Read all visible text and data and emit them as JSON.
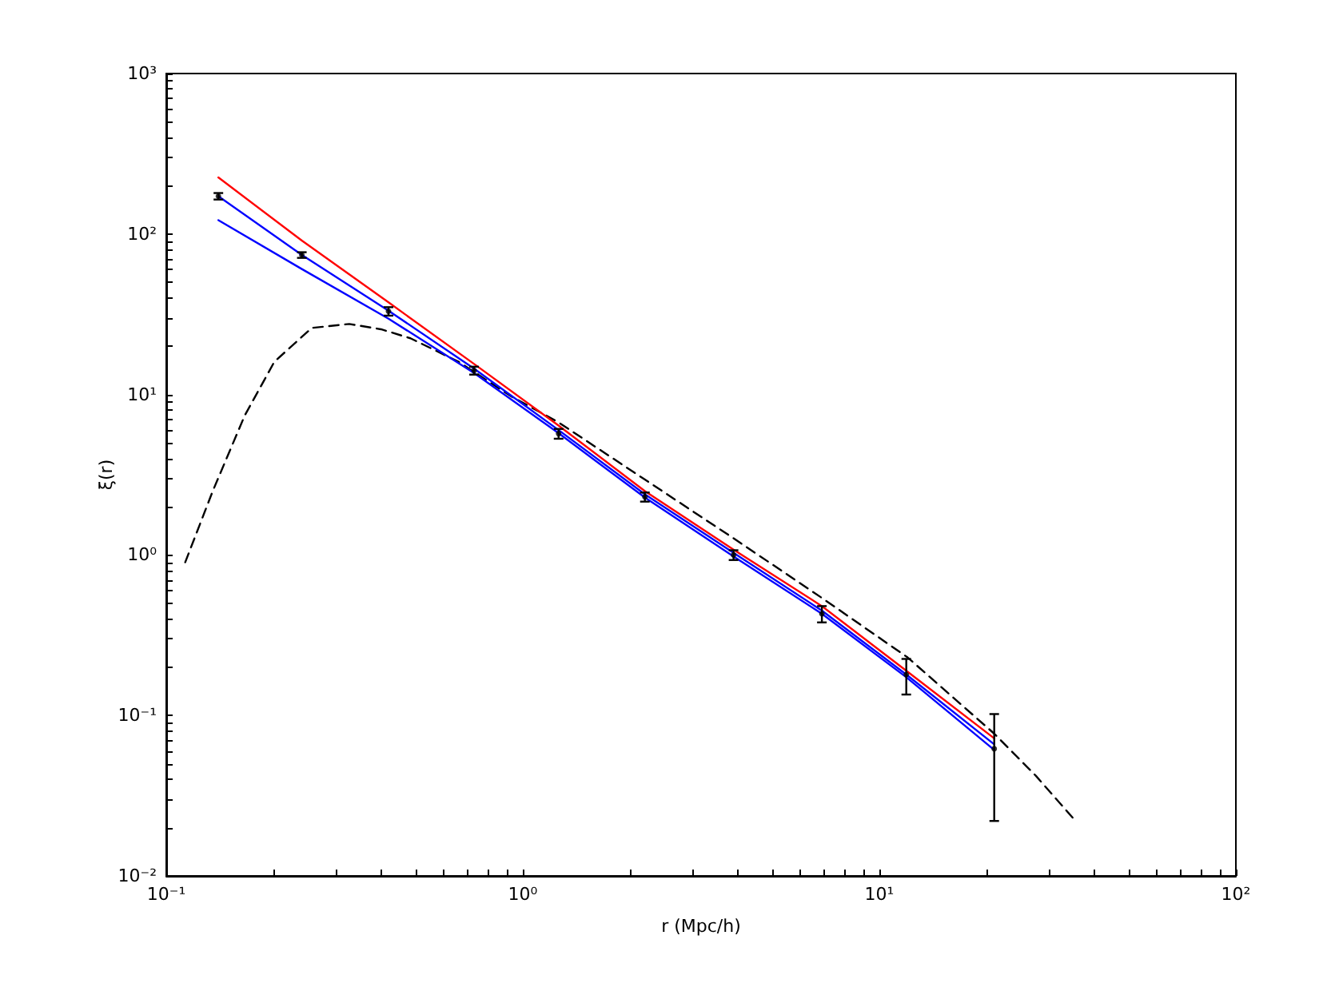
{
  "chart_data": {
    "type": "line",
    "xlabel": "r (Mpc/h)",
    "ylabel": "ξ(r)",
    "log": "xy",
    "grid": false,
    "marker": "none",
    "xlim": [
      0.1,
      100
    ],
    "ylim": [
      0.01,
      1000
    ],
    "xticks": [
      {
        "value": 0.1,
        "label": "10⁻¹"
      },
      {
        "value": 0.2,
        "label": null
      },
      {
        "value": 0.3,
        "label": null
      },
      {
        "value": 0.4,
        "label": null
      },
      {
        "value": 0.5,
        "label": null
      },
      {
        "value": 0.6,
        "label": null
      },
      {
        "value": 0.7,
        "label": null
      },
      {
        "value": 0.8,
        "label": null
      },
      {
        "value": 0.9,
        "label": null
      },
      {
        "value": 1,
        "label": "10⁰"
      },
      {
        "value": 2,
        "label": null
      },
      {
        "value": 3,
        "label": null
      },
      {
        "value": 4,
        "label": null
      },
      {
        "value": 5,
        "label": null
      },
      {
        "value": 6,
        "label": null
      },
      {
        "value": 7,
        "label": null
      },
      {
        "value": 8,
        "label": null
      },
      {
        "value": 9,
        "label": null
      },
      {
        "value": 10,
        "label": "10¹"
      },
      {
        "value": 20,
        "label": null
      },
      {
        "value": 30,
        "label": null
      },
      {
        "value": 40,
        "label": null
      },
      {
        "value": 50,
        "label": null
      },
      {
        "value": 60,
        "label": null
      },
      {
        "value": 70,
        "label": null
      },
      {
        "value": 80,
        "label": null
      },
      {
        "value": 90,
        "label": null
      },
      {
        "value": 100,
        "label": "10²"
      }
    ],
    "yticks": [
      {
        "value": 0.01,
        "label": "10⁻²"
      },
      {
        "value": 0.02,
        "label": null
      },
      {
        "value": 0.03,
        "label": null
      },
      {
        "value": 0.04,
        "label": null
      },
      {
        "value": 0.05,
        "label": null
      },
      {
        "value": 0.06,
        "label": null
      },
      {
        "value": 0.07,
        "label": null
      },
      {
        "value": 0.08,
        "label": null
      },
      {
        "value": 0.09,
        "label": null
      },
      {
        "value": 0.1,
        "label": "10⁻¹"
      },
      {
        "value": 0.2,
        "label": null
      },
      {
        "value": 0.3,
        "label": null
      },
      {
        "value": 0.4,
        "label": null
      },
      {
        "value": 0.5,
        "label": null
      },
      {
        "value": 0.6,
        "label": null
      },
      {
        "value": 0.7,
        "label": null
      },
      {
        "value": 0.8,
        "label": null
      },
      {
        "value": 0.9,
        "label": null
      },
      {
        "value": 1,
        "label": "10⁰"
      },
      {
        "value": 2,
        "label": null
      },
      {
        "value": 3,
        "label": null
      },
      {
        "value": 4,
        "label": null
      },
      {
        "value": 5,
        "label": null
      },
      {
        "value": 6,
        "label": null
      },
      {
        "value": 7,
        "label": null
      },
      {
        "value": 8,
        "label": null
      },
      {
        "value": 9,
        "label": null
      },
      {
        "value": 10,
        "label": "10¹"
      },
      {
        "value": 20,
        "label": null
      },
      {
        "value": 30,
        "label": null
      },
      {
        "value": 40,
        "label": null
      },
      {
        "value": 50,
        "label": null
      },
      {
        "value": 60,
        "label": null
      },
      {
        "value": 70,
        "label": null
      },
      {
        "value": 80,
        "label": null
      },
      {
        "value": 90,
        "label": null
      },
      {
        "value": 100,
        "label": "10²"
      },
      {
        "value": 200,
        "label": null
      },
      {
        "value": 300,
        "label": null
      },
      {
        "value": 400,
        "label": null
      },
      {
        "value": 500,
        "label": null
      },
      {
        "value": 600,
        "label": null
      },
      {
        "value": 700,
        "label": null
      },
      {
        "value": 800,
        "label": null
      },
      {
        "value": 900,
        "label": null
      },
      {
        "value": 1000,
        "label": "10³"
      }
    ],
    "series": [
      {
        "color": "#000000",
        "line_style": "dashed",
        "x": [
          0.113,
          0.135,
          0.166,
          0.201,
          0.256,
          0.326,
          0.4,
          0.484,
          0.66,
          0.93,
          1.26,
          2.2,
          3.9,
          6.9,
          12,
          21,
          27.5,
          35.5
        ],
        "values": [
          0.9,
          2.5,
          7.4,
          16,
          26,
          27.5,
          25.5,
          22.4,
          16,
          9.7,
          6.7,
          2.95,
          1.27,
          0.54,
          0.23,
          0.077,
          0.042,
          0.022
        ]
      },
      {
        "color": "#ff0000",
        "x": [
          0.14,
          0.24,
          0.42,
          0.73,
          1.26,
          2.2,
          3.9,
          6.9,
          11.9,
          21
        ],
        "values": [
          225,
          91,
          37.5,
          15.5,
          6.4,
          2.5,
          1.08,
          0.48,
          0.19,
          0.072
        ]
      },
      {
        "color": "#0000ff",
        "x": [
          0.14,
          0.24,
          0.42,
          0.73,
          1.26,
          2.2,
          3.9,
          6.9,
          11.9,
          21
        ],
        "values": [
          172,
          74,
          33.3,
          14.5,
          6,
          2.39,
          1.03,
          0.45,
          0.18,
          0.066
        ]
      },
      {
        "color": "#0000ff",
        "x": [
          0.14,
          0.24,
          0.42,
          0.73,
          1.26,
          2.2,
          3.9,
          6.9,
          11.9,
          21
        ],
        "values": [
          122,
          60.5,
          29.7,
          13.6,
          5.74,
          2.28,
          0.98,
          0.43,
          0.173,
          0.061
        ]
      },
      {
        "type": "scatter",
        "marker": "circle",
        "color": "#000000",
        "x": [
          0.14,
          0.24,
          0.42,
          0.73,
          1.26,
          2.2,
          3.9,
          6.9,
          11.9,
          21
        ],
        "values": [
          172,
          74,
          33,
          14.1,
          5.7,
          2.3,
          1,
          0.43,
          0.18,
          0.062
        ],
        "errors": [
          8,
          3,
          2,
          0.8,
          0.4,
          0.15,
          0.07,
          0.05,
          0.045,
          0.04
        ]
      }
    ]
  }
}
